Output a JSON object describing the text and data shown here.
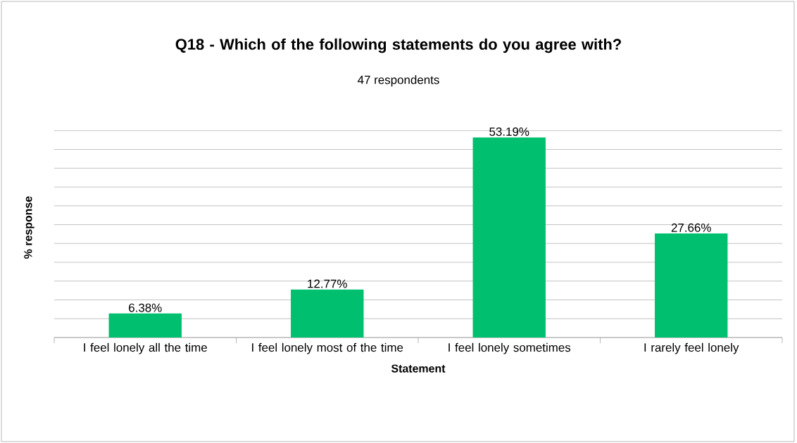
{
  "chart_data": {
    "type": "bar",
    "title": "Q18 - Which of the following statements do you agree with?",
    "subtitle": "47 respondents",
    "xlabel": "Statement",
    "ylabel": "% response",
    "categories": [
      "I feel lonely all the time",
      "I feel lonely most of the time",
      "I feel lonely sometimes",
      "I rarely feel lonely"
    ],
    "values": [
      6.38,
      12.77,
      53.19,
      27.66
    ],
    "value_labels": [
      "6.38%",
      "12.77%",
      "53.19%",
      "27.66%"
    ],
    "color": "#00bf6f",
    "grid": "y",
    "tick_labels": "x"
  }
}
